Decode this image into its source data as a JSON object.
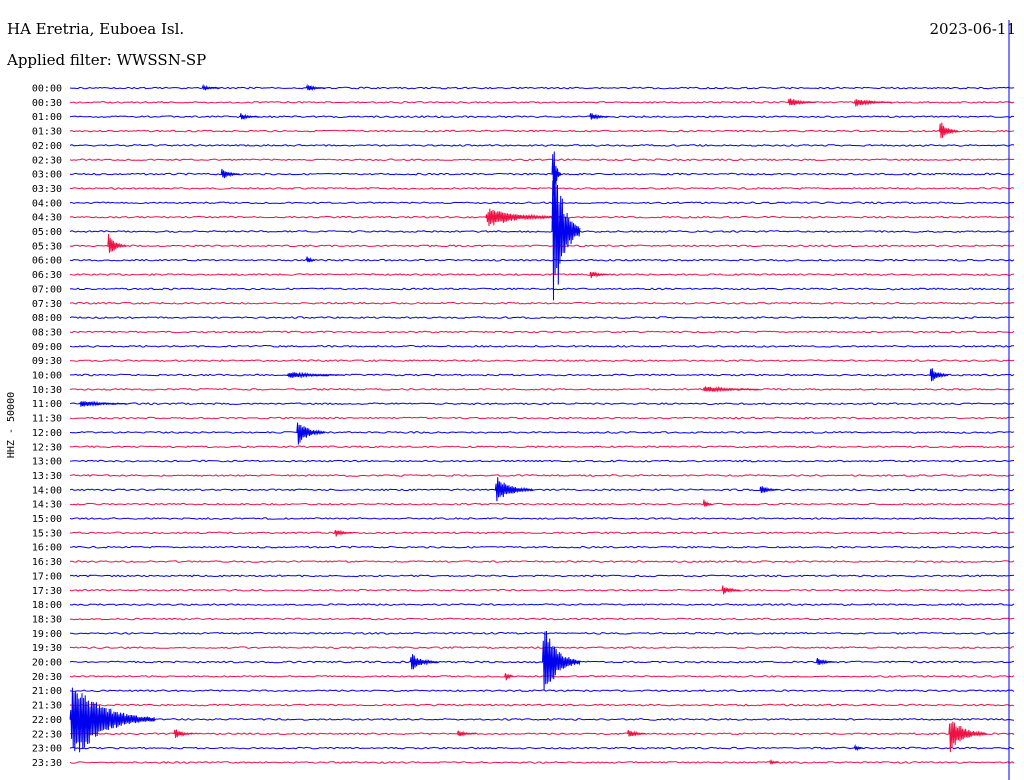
{
  "header": {
    "station": "HA Eretria, Euboea Isl.",
    "date": "2023-06-11",
    "filter": "Applied filter: WWSSN-SP"
  },
  "chart_data": {
    "type": "line",
    "ylabel": "HHZ - 50000",
    "row_labels": [
      "00:00",
      "00:30",
      "01:00",
      "01:30",
      "02:00",
      "02:30",
      "03:00",
      "03:30",
      "04:00",
      "04:30",
      "05:00",
      "05:30",
      "06:00",
      "06:30",
      "07:00",
      "07:30",
      "08:00",
      "08:30",
      "09:00",
      "09:30",
      "10:00",
      "10:30",
      "11:00",
      "11:30",
      "12:00",
      "12:30",
      "13:00",
      "13:30",
      "14:00",
      "14:30",
      "15:00",
      "15:30",
      "16:00",
      "16:30",
      "17:00",
      "17:30",
      "18:00",
      "18:30",
      "19:00",
      "19:30",
      "20:00",
      "20:30",
      "21:00",
      "21:30",
      "22:00",
      "22:30",
      "23:00",
      "23:30"
    ],
    "series_colors": {
      "even": "#0000ee",
      "odd": "#ee1144"
    },
    "events": [
      {
        "row": 0,
        "pos": 0.14,
        "amp": 3,
        "dur": 0.02
      },
      {
        "row": 0,
        "pos": 0.25,
        "amp": 4,
        "dur": 0.02
      },
      {
        "row": 1,
        "pos": 0.76,
        "amp": 6,
        "dur": 0.03
      },
      {
        "row": 1,
        "pos": 0.83,
        "amp": 5,
        "dur": 0.04
      },
      {
        "row": 2,
        "pos": 0.18,
        "amp": 4,
        "dur": 0.02
      },
      {
        "row": 2,
        "pos": 0.55,
        "amp": 5,
        "dur": 0.02
      },
      {
        "row": 3,
        "pos": 0.92,
        "amp": 14,
        "dur": 0.02
      },
      {
        "row": 6,
        "pos": 0.16,
        "amp": 7,
        "dur": 0.02
      },
      {
        "row": 6,
        "pos": 0.51,
        "amp": 40,
        "dur": 0.01
      },
      {
        "row": 9,
        "pos": 0.44,
        "amp": 12,
        "dur": 0.08
      },
      {
        "row": 10,
        "pos": 0.51,
        "amp": 110,
        "dur": 0.03
      },
      {
        "row": 11,
        "pos": 0.04,
        "amp": 14,
        "dur": 0.02
      },
      {
        "row": 12,
        "pos": 0.25,
        "amp": 6,
        "dur": 0.01
      },
      {
        "row": 13,
        "pos": 0.55,
        "amp": 5,
        "dur": 0.02
      },
      {
        "row": 20,
        "pos": 0.23,
        "amp": 4,
        "dur": 0.06
      },
      {
        "row": 20,
        "pos": 0.91,
        "amp": 11,
        "dur": 0.02
      },
      {
        "row": 21,
        "pos": 0.67,
        "amp": 4,
        "dur": 0.06
      },
      {
        "row": 22,
        "pos": 0.01,
        "amp": 4,
        "dur": 0.05
      },
      {
        "row": 24,
        "pos": 0.24,
        "amp": 16,
        "dur": 0.03
      },
      {
        "row": 28,
        "pos": 0.45,
        "amp": 16,
        "dur": 0.04
      },
      {
        "row": 28,
        "pos": 0.73,
        "amp": 6,
        "dur": 0.02
      },
      {
        "row": 29,
        "pos": 0.67,
        "amp": 7,
        "dur": 0.01
      },
      {
        "row": 31,
        "pos": 0.28,
        "amp": 5,
        "dur": 0.02
      },
      {
        "row": 35,
        "pos": 0.69,
        "amp": 6,
        "dur": 0.02
      },
      {
        "row": 40,
        "pos": 0.36,
        "amp": 11,
        "dur": 0.03
      },
      {
        "row": 40,
        "pos": 0.5,
        "amp": 45,
        "dur": 0.04
      },
      {
        "row": 40,
        "pos": 0.79,
        "amp": 6,
        "dur": 0.02
      },
      {
        "row": 41,
        "pos": 0.46,
        "amp": 7,
        "dur": 0.01
      },
      {
        "row": 44,
        "pos": 0.0,
        "amp": 50,
        "dur": 0.09
      },
      {
        "row": 45,
        "pos": 0.11,
        "amp": 7,
        "dur": 0.02
      },
      {
        "row": 45,
        "pos": 0.41,
        "amp": 4,
        "dur": 0.02
      },
      {
        "row": 45,
        "pos": 0.59,
        "amp": 6,
        "dur": 0.02
      },
      {
        "row": 45,
        "pos": 0.93,
        "amp": 22,
        "dur": 0.04
      },
      {
        "row": 46,
        "pos": 0.83,
        "amp": 4,
        "dur": 0.01
      },
      {
        "row": 47,
        "pos": 0.74,
        "amp": 4,
        "dur": 0.01
      }
    ]
  }
}
